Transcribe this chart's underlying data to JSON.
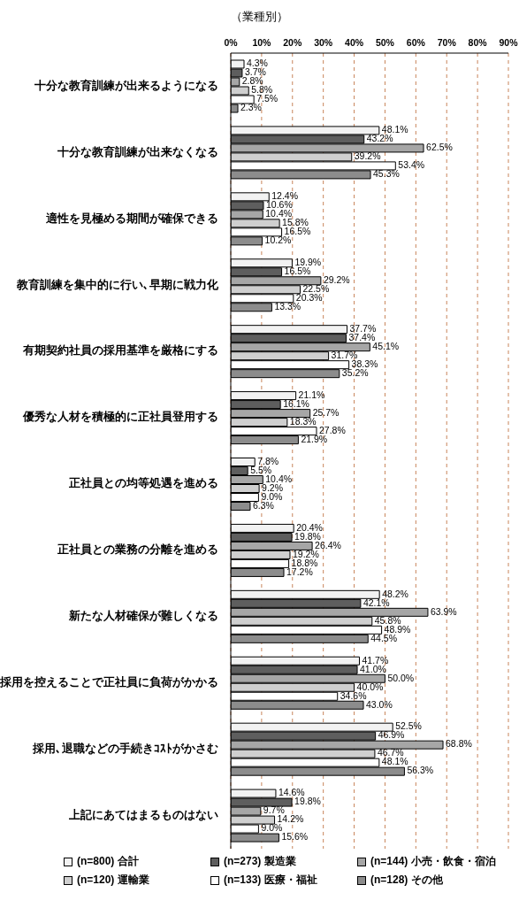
{
  "chart_data": {
    "type": "bar",
    "orientation": "horizontal",
    "title": "（業種別）",
    "categories": [
      "十分な教育訓練が出来るようになる",
      "十分な教育訓練が出来なくなる",
      "適性を見極める期間が確保できる",
      "教育訓練を集中的に行い､早期に戦力化",
      "有期契約社員の採用基準を厳格にする",
      "優秀な人材を積極的に正社員登用する",
      "正社員との均等処遇を進める",
      "正社員との業務の分離を進める",
      "新たな人材確保が難しくなる",
      "採用を控えることで正社員に負荷がかかる",
      "採用､退職などの手続きｺｽﾄがかさむ",
      "上記にあてはまるものはない"
    ],
    "series": [
      {
        "name": "(n=800) 合計",
        "color": "#f2f2f2",
        "values": [
          4.3,
          48.1,
          12.4,
          19.9,
          37.7,
          21.1,
          7.8,
          20.4,
          48.2,
          41.7,
          52.5,
          14.6
        ],
        "value_labels": [
          "4.3%",
          "48.1%",
          "12.4%",
          "19.9%",
          "37.7%",
          "21.1%",
          "7.8%",
          "20.4%",
          "48.2%",
          "41.7%",
          "52.5%",
          "14.6%"
        ]
      },
      {
        "name": "(n=273) 製造業",
        "color": "#5e5e5e",
        "values": [
          3.7,
          43.2,
          10.6,
          16.5,
          37.4,
          16.1,
          5.5,
          19.8,
          42.1,
          41.0,
          46.9,
          19.8
        ],
        "value_labels": [
          "3.7%",
          "43.2%",
          "10.6%",
          "16.5%",
          "37.4%",
          "16.1%",
          "5.5%",
          "19.8%",
          "42.1%",
          "41.0%",
          "46.9%",
          "19.8%"
        ]
      },
      {
        "name": "(n=144) 小売・飲食・宿泊",
        "color": "#a6a6a6",
        "values": [
          2.8,
          62.5,
          10.4,
          29.2,
          45.1,
          25.7,
          10.4,
          26.4,
          63.9,
          50.0,
          68.8,
          9.7
        ],
        "value_labels": [
          "2.8%",
          "62.5%",
          "10.4%",
          "29.2%",
          "45.1%",
          "25.7%",
          "10.4%",
          "26.4%",
          "63.9%",
          "50.0%",
          "68.8%",
          "9.7%"
        ]
      },
      {
        "name": "(n=120) 運輸業",
        "color": "#cfcfcf",
        "values": [
          5.8,
          39.2,
          15.8,
          22.5,
          31.7,
          18.3,
          9.2,
          19.2,
          45.8,
          40.0,
          46.7,
          14.2
        ],
        "value_labels": [
          "5.8%",
          "39.2%",
          "15.8%",
          "22.5%",
          "31.7%",
          "18.3%",
          "9.2%",
          "19.2%",
          "45.8%",
          "40.0%",
          "46.7%",
          "14.2%"
        ]
      },
      {
        "name": "(n=133) 医療・福祉",
        "color": "#ffffff",
        "values": [
          7.5,
          53.4,
          16.5,
          20.3,
          38.3,
          27.8,
          9.0,
          18.8,
          48.9,
          34.6,
          48.1,
          9.0
        ],
        "value_labels": [
          "7.5%",
          "53.4%",
          "16.5%",
          "20.3%",
          "38.3%",
          "27.8%",
          "9.0%",
          "18.8%",
          "48.9%",
          "34.6%",
          "48.1%",
          "9.0%"
        ]
      },
      {
        "name": "(n=128) その他",
        "color": "#8c8c8c",
        "values": [
          2.3,
          45.3,
          10.2,
          13.3,
          35.2,
          21.9,
          6.3,
          17.2,
          44.5,
          43.0,
          56.3,
          15.6
        ],
        "value_labels": [
          "2.3%",
          "45.3%",
          "10.2%",
          "13.3%",
          "35.2%",
          "21.9%",
          "6.3%",
          "17.2%",
          "44.5%",
          "43.0%",
          "56.3%",
          "15.6%"
        ]
      }
    ],
    "xlim": [
      0,
      90
    ],
    "xticks": [
      {
        "value": 0,
        "label": "0%"
      },
      {
        "value": 10,
        "label": "10%"
      },
      {
        "value": 20,
        "label": "20%"
      },
      {
        "value": 30,
        "label": "30%"
      },
      {
        "value": 40,
        "label": "40%"
      },
      {
        "value": 50,
        "label": "50%"
      },
      {
        "value": 60,
        "label": "60%"
      },
      {
        "value": 70,
        "label": "70%"
      },
      {
        "value": 80,
        "label": "80%"
      },
      {
        "value": 90,
        "label": "90%"
      }
    ],
    "grid": "x",
    "legend": "bottom"
  }
}
